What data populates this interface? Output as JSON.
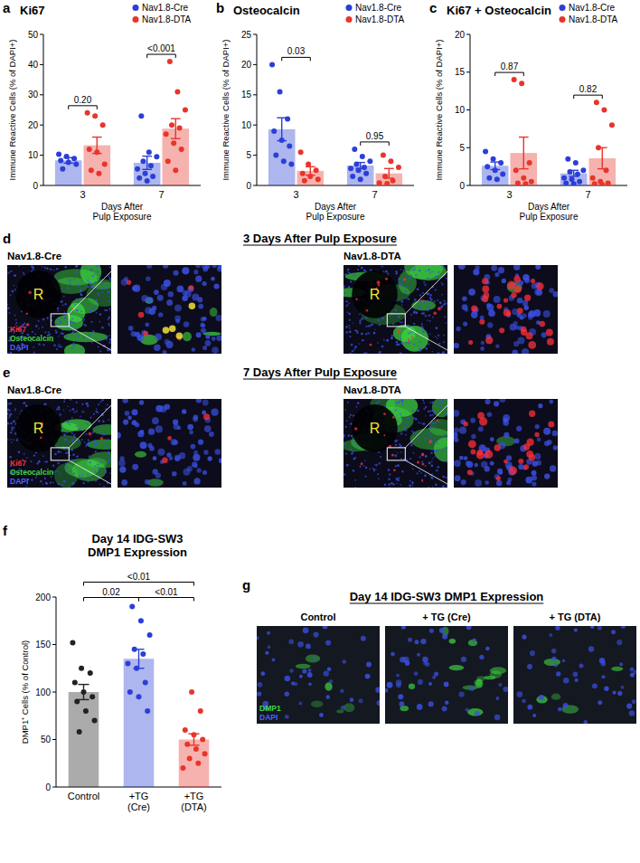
{
  "chart_data": [
    {
      "type": "bar",
      "panel": "a",
      "title": "Ki67",
      "y_label": "Immune Reactive Cells (% of DAPI+)",
      "x_label": "Days After\nPulp Exposure",
      "categories": [
        "3",
        "7"
      ],
      "ylim": [
        0,
        50
      ],
      "yticks": [
        0,
        10,
        20,
        30,
        40,
        50
      ],
      "legend": "top-right",
      "grid": false,
      "series": [
        {
          "name": "Nav1.8-Cre",
          "color": "#2b3fd6",
          "marker": "circle",
          "values": [
            8.3,
            7.5
          ],
          "errors": [
            0.9,
            2.2
          ],
          "points": [
            [
              10.3,
              9.6,
              8.9,
              8.2,
              7.6,
              7.0,
              5.5
            ],
            [
              23,
              11,
              9.5,
              8,
              6.5,
              5.5,
              4,
              3,
              2.5,
              1.5
            ]
          ]
        },
        {
          "name": "Nav1.8-DTA",
          "color": "#e8352b",
          "marker": "circle",
          "values": [
            13.3,
            18.8
          ],
          "errors": [
            2.7,
            3.3
          ],
          "points": [
            [
              24,
              23,
              20,
              12,
              11,
              7,
              5,
              4
            ],
            [
              41,
              31,
              25,
              20,
              19,
              17,
              14,
              12,
              8,
              5
            ]
          ]
        }
      ],
      "comparisons": [
        {
          "category": 0,
          "label": "0.20"
        },
        {
          "category": 1,
          "label": "<0.001"
        }
      ]
    },
    {
      "type": "bar",
      "panel": "b",
      "title": "Osteocalcin",
      "y_label": "Immune Reactive Cells (% of DAPI+)",
      "x_label": "Days After\nPulp Exposure",
      "categories": [
        "3",
        "7"
      ],
      "ylim": [
        0,
        25
      ],
      "yticks": [
        0,
        5,
        10,
        15,
        20,
        25
      ],
      "legend": "top-right",
      "grid": false,
      "series": [
        {
          "name": "Nav1.8-Cre",
          "color": "#2b3fd6",
          "marker": "circle",
          "values": [
            9.3,
            3.3
          ],
          "errors": [
            1.9,
            0.5
          ],
          "points": [
            [
              20,
              15.5,
              11,
              9,
              7.5,
              6.5,
              5,
              4,
              3.5
            ],
            [
              6,
              4.8,
              4,
              3.5,
              3,
              2.8,
              2.5,
              2,
              1.5,
              1
            ]
          ]
        },
        {
          "name": "Nav1.8-DTA",
          "color": "#e8352b",
          "marker": "circle",
          "values": [
            2.4,
            2.0
          ],
          "errors": [
            0.7,
            0.8
          ],
          "points": [
            [
              5.5,
              3.5,
              2.5,
              2,
              1.5,
              1,
              0.8
            ],
            [
              5,
              4,
              3,
              1.5,
              0.8,
              0.4,
              0.3
            ]
          ]
        }
      ],
      "comparisons": [
        {
          "category": 0,
          "label": "0.03"
        },
        {
          "category": 1,
          "label": "0.95"
        }
      ]
    },
    {
      "type": "bar",
      "panel": "c",
      "title": "Ki67 + Osteocalcin",
      "y_label": "Immune Reactive Cells (% of DAPI+)",
      "x_label": "Days After\nPulp Exposure",
      "categories": [
        "3",
        "7"
      ],
      "ylim": [
        0,
        20
      ],
      "yticks": [
        0,
        5,
        10,
        15,
        20
      ],
      "legend": "top-right",
      "grid": false,
      "series": [
        {
          "name": "Nav1.8-Cre",
          "color": "#2b3fd6",
          "marker": "circle",
          "values": [
            2.6,
            1.6
          ],
          "errors": [
            0.5,
            0.4
          ],
          "points": [
            [
              4.5,
              3.5,
              3,
              2.5,
              2,
              1.5,
              1,
              0.8
            ],
            [
              3.5,
              3,
              2,
              1.8,
              1.5,
              1,
              0.8,
              0.5,
              0.3,
              0.2
            ]
          ]
        },
        {
          "name": "Nav1.8-DTA",
          "color": "#e8352b",
          "marker": "circle",
          "values": [
            4.3,
            3.6
          ],
          "errors": [
            2.1,
            1.4
          ],
          "points": [
            [
              14,
              13.5,
              3,
              2,
              1,
              0.5,
              0.3,
              0.2
            ],
            [
              11,
              10,
              8,
              5,
              2,
              1,
              0.5,
              0.3,
              0.2,
              0.1
            ]
          ]
        }
      ],
      "comparisons": [
        {
          "category": 0,
          "label": "0.87"
        },
        {
          "category": 1,
          "label": "0.82"
        }
      ]
    },
    {
      "type": "bar",
      "panel": "f",
      "title": "Day 14 IDG-SW3\nDMP1 Expression",
      "y_label": "DMP1⁺ Cells (% of Control)",
      "categories": [
        "Control",
        "+TG\n(Cre)",
        "+TG\n(DTA)"
      ],
      "ylim": [
        0,
        200
      ],
      "yticks": [
        0,
        50,
        100,
        150,
        200
      ],
      "grid": false,
      "marker": "circle",
      "values": [
        100,
        135,
        50
      ],
      "errors": [
        8,
        10,
        6
      ],
      "colors": [
        "#222222",
        "#2b3fd6",
        "#e8352b"
      ],
      "points": [
        [
          152,
          125,
          120,
          110,
          100,
          95,
          90,
          80,
          70,
          58
        ],
        [
          190,
          175,
          160,
          145,
          140,
          130,
          125,
          110,
          100,
          95,
          80
        ],
        [
          100,
          80,
          60,
          55,
          50,
          45,
          40,
          35,
          30,
          25,
          20
        ]
      ],
      "comparisons": [
        {
          "between": [
            0,
            2
          ],
          "label": "<0.01"
        },
        {
          "between": [
            0,
            1
          ],
          "label": "0.02"
        },
        {
          "between": [
            1,
            2
          ],
          "label": "<0.01"
        }
      ]
    }
  ],
  "figure_panels": [
    {
      "panel": "d",
      "title": "3 Days After Pulp Exposure",
      "images": [
        {
          "label": "Nav1.8-Cre",
          "region": "R"
        },
        {
          "label": "Nav1.8-DTA",
          "region": "R"
        }
      ],
      "stains": [
        {
          "label": "Ki67",
          "color": "#ff3030"
        },
        {
          "label": "Osteocalcin",
          "color": "#3fd844"
        },
        {
          "label": "DAPI",
          "color": "#4a62ff"
        }
      ]
    },
    {
      "panel": "e",
      "title": "7 Days After Pulp Exposure",
      "images": [
        {
          "label": "Nav1.8-Cre",
          "region": "R"
        },
        {
          "label": "Nav1.8-DTA",
          "region": "R"
        }
      ],
      "stains": [
        {
          "label": "Ki67",
          "color": "#ff3030"
        },
        {
          "label": "Osteocalcin",
          "color": "#3fd844"
        },
        {
          "label": "DAPI",
          "color": "#4a62ff"
        }
      ]
    },
    {
      "panel": "g",
      "title": "Day 14 IDG-SW3 DMP1 Expression",
      "images": [
        {
          "label": "Control"
        },
        {
          "label": "+ TG (Cre)"
        },
        {
          "label": "+ TG (DTA)"
        }
      ],
      "stains": [
        {
          "label": "DMP1",
          "color": "#3fd844"
        },
        {
          "label": "DAPI",
          "color": "#4a62ff"
        }
      ]
    }
  ]
}
